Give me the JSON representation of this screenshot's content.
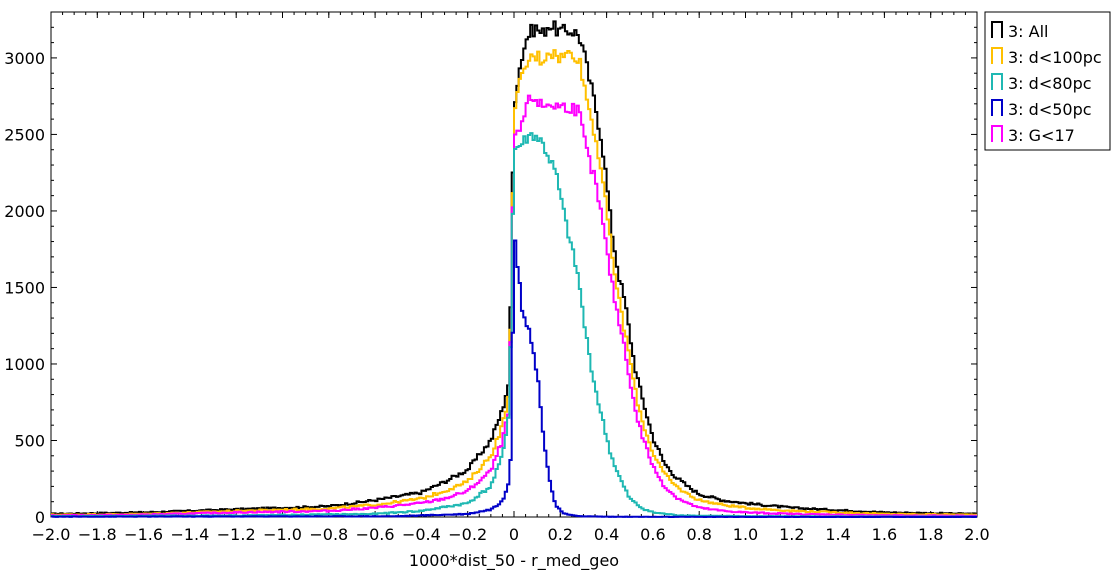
{
  "chart_data": {
    "type": "line",
    "title": "",
    "xlabel": "1000*dist_50 - r_med_geo",
    "ylabel": "",
    "xlim": [
      -2.0,
      2.0
    ],
    "ylim": [
      0,
      3300
    ],
    "x_ticks": [
      -2.0,
      -1.8,
      -1.6,
      -1.4,
      -1.2,
      -1.0,
      -0.8,
      -0.6,
      -0.4,
      -0.2,
      0,
      0.2,
      0.4,
      0.6,
      0.8,
      1.0,
      1.2,
      1.4,
      1.6,
      1.8,
      2.0
    ],
    "x_tick_labels": [
      "-2.0",
      "-1.8",
      "-1.6",
      "-1.4",
      "-1.2",
      "-1.0",
      "-0.8",
      "-0.6",
      "-0.4",
      "-0.2",
      "0",
      "0.2",
      "0.4",
      "0.6",
      "0.8",
      "1.0",
      "1.2",
      "1.4",
      "1.6",
      "1.8",
      "2.0"
    ],
    "y_ticks": [
      0,
      500,
      1000,
      1500,
      2000,
      2500,
      3000
    ],
    "y_tick_labels": [
      "0",
      "500",
      "1000",
      "1500",
      "2000",
      "2500",
      "3000"
    ],
    "grid": false,
    "legend_position": "outside-top-right",
    "step_histogram": true,
    "series": [
      {
        "name": "3: All",
        "color": "#000000",
        "x": [
          -2.0,
          -1.6,
          -1.2,
          -0.8,
          -0.6,
          -0.4,
          -0.3,
          -0.2,
          -0.1,
          -0.05,
          -0.02,
          0.0,
          0.02,
          0.04,
          0.06,
          0.08,
          0.1,
          0.12,
          0.15,
          0.2,
          0.25,
          0.28,
          0.3,
          0.32,
          0.35,
          0.38,
          0.4,
          0.42,
          0.45,
          0.48,
          0.5,
          0.52,
          0.55,
          0.6,
          0.65,
          0.7,
          0.75,
          0.8,
          0.9,
          1.0,
          1.2,
          1.6,
          2.0
        ],
        "y": [
          20,
          30,
          50,
          70,
          110,
          160,
          230,
          310,
          500,
          700,
          900,
          2700,
          2900,
          3050,
          3150,
          3180,
          3200,
          3150,
          3220,
          3170,
          3180,
          3150,
          3050,
          2900,
          2700,
          2450,
          2200,
          1900,
          1600,
          1400,
          1200,
          1000,
          800,
          520,
          350,
          260,
          200,
          150,
          110,
          90,
          60,
          30,
          20
        ]
      },
      {
        "name": "3: d<100pc",
        "color": "#ffc000",
        "x": [
          -2.0,
          -1.6,
          -1.2,
          -0.8,
          -0.6,
          -0.4,
          -0.3,
          -0.2,
          -0.1,
          -0.05,
          -0.02,
          0.0,
          0.02,
          0.04,
          0.06,
          0.08,
          0.1,
          0.12,
          0.15,
          0.2,
          0.25,
          0.28,
          0.3,
          0.32,
          0.35,
          0.38,
          0.4,
          0.42,
          0.45,
          0.48,
          0.5,
          0.52,
          0.55,
          0.6,
          0.65,
          0.7,
          0.75,
          0.8,
          0.9,
          1.0,
          1.2,
          1.6,
          2.0
        ],
        "y": [
          15,
          20,
          40,
          55,
          80,
          120,
          170,
          230,
          400,
          600,
          800,
          2600,
          2800,
          2900,
          2980,
          3000,
          3020,
          2980,
          3050,
          3000,
          3040,
          3000,
          2850,
          2700,
          2500,
          2250,
          2000,
          1750,
          1450,
          1200,
          1050,
          850,
          650,
          420,
          280,
          200,
          150,
          110,
          80,
          60,
          40,
          20,
          15
        ]
      },
      {
        "name": "3: d<80pc",
        "color": "#1fb8b3",
        "x": [
          -2.0,
          -1.2,
          -0.6,
          -0.4,
          -0.2,
          -0.1,
          -0.05,
          -0.02,
          0.0,
          0.02,
          0.04,
          0.06,
          0.08,
          0.1,
          0.12,
          0.15,
          0.18,
          0.2,
          0.22,
          0.25,
          0.28,
          0.3,
          0.32,
          0.35,
          0.38,
          0.4,
          0.42,
          0.45,
          0.48,
          0.5,
          0.55,
          0.6,
          0.7,
          0.8,
          1.0,
          1.5,
          2.0
        ],
        "y": [
          5,
          10,
          20,
          40,
          90,
          200,
          400,
          700,
          2400,
          2420,
          2450,
          2480,
          2500,
          2480,
          2450,
          2350,
          2250,
          2100,
          1950,
          1750,
          1550,
          1300,
          1100,
          850,
          650,
          520,
          400,
          280,
          180,
          120,
          60,
          30,
          12,
          8,
          5,
          3,
          2
        ]
      },
      {
        "name": "3: d<50pc",
        "color": "#0000c8",
        "x": [
          -2.0,
          -0.5,
          -0.2,
          -0.1,
          -0.05,
          -0.02,
          -0.01,
          0.0,
          0.01,
          0.02,
          0.03,
          0.04,
          0.05,
          0.06,
          0.08,
          0.1,
          0.11,
          0.12,
          0.13,
          0.14,
          0.15,
          0.16,
          0.17,
          0.18,
          0.2,
          0.22,
          0.25,
          0.3,
          0.4,
          0.6,
          2.0
        ],
        "y": [
          2,
          5,
          20,
          50,
          100,
          250,
          500,
          1950,
          1700,
          1600,
          1400,
          1350,
          1300,
          1250,
          1100,
          950,
          800,
          650,
          500,
          380,
          280,
          200,
          130,
          80,
          40,
          20,
          10,
          5,
          2,
          1,
          0
        ]
      },
      {
        "name": "3: G<17",
        "color": "#ff00ff",
        "x": [
          -2.0,
          -1.6,
          -1.2,
          -0.8,
          -0.6,
          -0.4,
          -0.3,
          -0.2,
          -0.1,
          -0.05,
          -0.02,
          0.0,
          0.02,
          0.04,
          0.06,
          0.08,
          0.1,
          0.12,
          0.15,
          0.2,
          0.25,
          0.28,
          0.3,
          0.32,
          0.35,
          0.38,
          0.4,
          0.42,
          0.45,
          0.48,
          0.5,
          0.52,
          0.55,
          0.6,
          0.65,
          0.7,
          0.75,
          0.8,
          0.9,
          1.0,
          1.2,
          1.6,
          2.0
        ],
        "y": [
          10,
          15,
          30,
          40,
          60,
          90,
          120,
          170,
          300,
          500,
          700,
          2450,
          2500,
          2600,
          2700,
          2750,
          2720,
          2680,
          2700,
          2680,
          2680,
          2650,
          2500,
          2350,
          2200,
          1950,
          1750,
          1550,
          1300,
          1100,
          900,
          720,
          550,
          330,
          200,
          130,
          90,
          60,
          40,
          30,
          20,
          10,
          8
        ]
      }
    ]
  }
}
